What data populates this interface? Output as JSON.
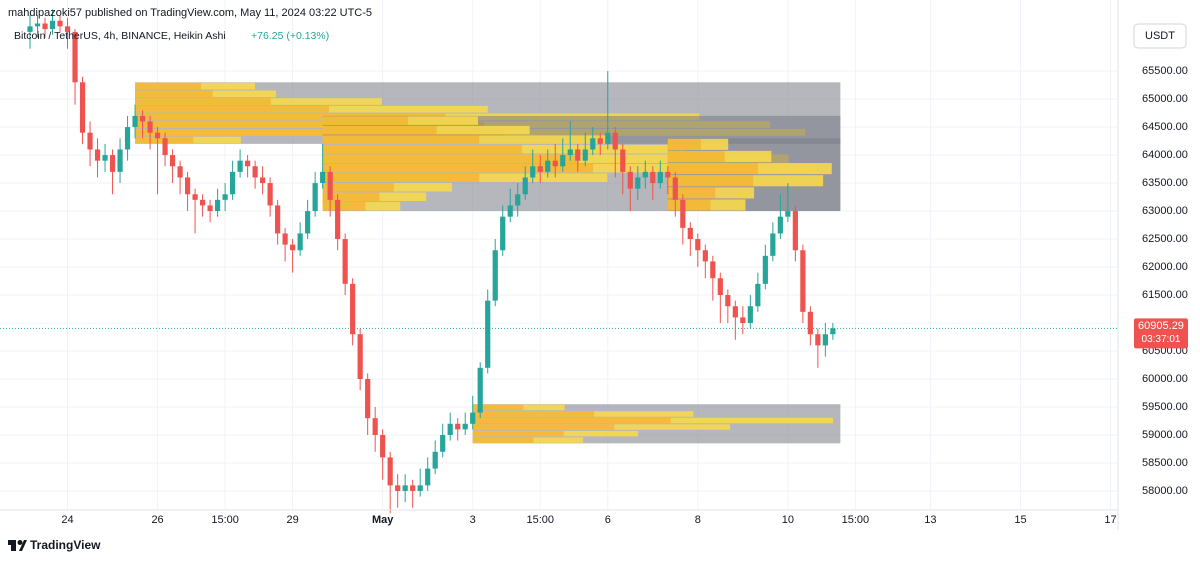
{
  "chart_data": {
    "type": "candlestick",
    "publisher": "mahdipazoki57 published on TradingView.com, May 11, 2024 03:22 UTC-5",
    "symbol": "Bitcoin / TetherUS, 4h, BINANCE, Heikin Ashi",
    "change": "+76.25 (+0.13%)",
    "currency": "USDT",
    "countdown": "03:37:01",
    "brand": "TradingView",
    "up_color": "#26a69a",
    "down_color": "#ef5350",
    "grid": true,
    "xlim": [
      -4,
      145
    ],
    "ylim": [
      57660,
      66770
    ],
    "last_price": {
      "value": 60905.29,
      "label": "60905.29"
    },
    "xticks": [
      {
        "value": 5,
        "label": "24"
      },
      {
        "value": 17,
        "label": "26"
      },
      {
        "value": 26,
        "label": "15:00"
      },
      {
        "value": 35,
        "label": "29"
      },
      {
        "value": 47,
        "label": "May"
      },
      {
        "value": 59,
        "label": "3"
      },
      {
        "value": 68,
        "label": "15:00"
      },
      {
        "value": 77,
        "label": "6"
      },
      {
        "value": 89,
        "label": "8"
      },
      {
        "value": 101,
        "label": "10"
      },
      {
        "value": 110,
        "label": "15:00"
      },
      {
        "value": 120,
        "label": "13"
      },
      {
        "value": 132,
        "label": "15"
      },
      {
        "value": 144,
        "label": "17"
      }
    ],
    "yticks": [
      {
        "value": 58000,
        "label": "58000.00"
      },
      {
        "value": 58500,
        "label": "58500.00"
      },
      {
        "value": 59000,
        "label": "59000.00"
      },
      {
        "value": 59500,
        "label": "59500.00"
      },
      {
        "value": 60000,
        "label": "60000.00"
      },
      {
        "value": 60500,
        "label": "60500.00"
      },
      {
        "value": 61000,
        "label": "61000.00"
      },
      {
        "value": 61500,
        "label": "61500.00"
      },
      {
        "value": 62000,
        "label": "62000.00"
      },
      {
        "value": 62500,
        "label": "62500.00"
      },
      {
        "value": 63000,
        "label": "63000.00"
      },
      {
        "value": 63500,
        "label": "63500.00"
      },
      {
        "value": 64000,
        "label": "64000.00"
      },
      {
        "value": 64500,
        "label": "64500.00"
      },
      {
        "value": 65000,
        "label": "65000.00"
      },
      {
        "value": 65500,
        "label": "65500.00"
      }
    ],
    "profiles": [
      {
        "start": 14,
        "end": 108,
        "low": 64200,
        "high": 65300,
        "rows": [
          0.15,
          0.95,
          0.9,
          0.8,
          0.5,
          0.35,
          0.2,
          0.17
        ]
      },
      {
        "start": 39,
        "end": 108,
        "low": 63000,
        "high": 64700,
        "rows": [
          0.15,
          0.2,
          0.25,
          0.55,
          0.95,
          0.9,
          0.7,
          0.55,
          0.4,
          0.3
        ]
      },
      {
        "start": 59,
        "end": 108,
        "low": 58850,
        "high": 59550,
        "rows": [
          0.3,
          0.45,
          0.7,
          0.98,
          0.6,
          0.25
        ]
      },
      {
        "start": 85,
        "end": 108,
        "low": 63000,
        "high": 64300,
        "rows": [
          0.45,
          0.5,
          0.9,
          0.95,
          0.6,
          0.35
        ]
      }
    ],
    "candles": [
      [
        66200,
        66500,
        65900,
        66300
      ],
      [
        66300,
        66500,
        66100,
        66350
      ],
      [
        66350,
        66450,
        66100,
        66250
      ],
      [
        66250,
        66600,
        66150,
        66400
      ],
      [
        66400,
        66500,
        66200,
        66300
      ],
      [
        66300,
        66450,
        65900,
        66200
      ],
      [
        66200,
        66250,
        64900,
        65300
      ],
      [
        65300,
        65400,
        64200,
        64400
      ],
      [
        64400,
        64600,
        63800,
        64100
      ],
      [
        64100,
        64300,
        63600,
        63900
      ],
      [
        63900,
        64200,
        63700,
        64000
      ],
      [
        64000,
        64100,
        63300,
        63700
      ],
      [
        63700,
        64300,
        63500,
        64100
      ],
      [
        64100,
        64700,
        63900,
        64500
      ],
      [
        64500,
        64900,
        64300,
        64700
      ],
      [
        64700,
        64800,
        64300,
        64600
      ],
      [
        64600,
        64700,
        64100,
        64400
      ],
      [
        64400,
        64500,
        63300,
        64300
      ],
      [
        64300,
        64400,
        63800,
        64000
      ],
      [
        64000,
        64100,
        63500,
        63800
      ],
      [
        63800,
        63900,
        63300,
        63600
      ],
      [
        63600,
        63700,
        63000,
        63300
      ],
      [
        63300,
        63400,
        62600,
        63200
      ],
      [
        63200,
        63300,
        62900,
        63100
      ],
      [
        63100,
        63200,
        62800,
        63000
      ],
      [
        63000,
        63400,
        62900,
        63200
      ],
      [
        63200,
        63500,
        63000,
        63300
      ],
      [
        63300,
        63900,
        63200,
        63700
      ],
      [
        63700,
        64100,
        63600,
        63900
      ],
      [
        63900,
        64000,
        63600,
        63800
      ],
      [
        63800,
        63900,
        63400,
        63600
      ],
      [
        63600,
        63800,
        63300,
        63500
      ],
      [
        63500,
        63600,
        62900,
        63100
      ],
      [
        63100,
        63200,
        62400,
        62600
      ],
      [
        62600,
        62700,
        62100,
        62400
      ],
      [
        62400,
        62500,
        61900,
        62300
      ],
      [
        62300,
        62800,
        62200,
        62600
      ],
      [
        62600,
        63200,
        62500,
        63000
      ],
      [
        63000,
        63700,
        62900,
        63500
      ],
      [
        63500,
        64200,
        63400,
        63700
      ],
      [
        63700,
        63800,
        62900,
        63200
      ],
      [
        63200,
        63300,
        62300,
        62500
      ],
      [
        62500,
        62600,
        61500,
        61700
      ],
      [
        61700,
        61800,
        60600,
        60800
      ],
      [
        60800,
        60900,
        59800,
        60000
      ],
      [
        60000,
        60100,
        59000,
        59300
      ],
      [
        59300,
        59500,
        58700,
        59000
      ],
      [
        59000,
        59100,
        58200,
        58600
      ],
      [
        58600,
        58700,
        57600,
        58100
      ],
      [
        58100,
        58300,
        57700,
        58000
      ],
      [
        58000,
        58300,
        57800,
        58100
      ],
      [
        58100,
        58200,
        57700,
        58000
      ],
      [
        58000,
        58400,
        57900,
        58100
      ],
      [
        58100,
        58600,
        58000,
        58400
      ],
      [
        58400,
        58900,
        58300,
        58700
      ],
      [
        58700,
        59200,
        58600,
        59000
      ],
      [
        59000,
        59400,
        58900,
        59200
      ],
      [
        59200,
        59300,
        58900,
        59100
      ],
      [
        59100,
        59400,
        59000,
        59200
      ],
      [
        59200,
        59700,
        59100,
        59400
      ],
      [
        59400,
        60300,
        59300,
        60200
      ],
      [
        60200,
        61600,
        60100,
        61400
      ],
      [
        61400,
        62500,
        61300,
        62300
      ],
      [
        62300,
        63100,
        62200,
        62900
      ],
      [
        62900,
        63400,
        62800,
        63100
      ],
      [
        63100,
        63500,
        62900,
        63300
      ],
      [
        63300,
        63800,
        63200,
        63600
      ],
      [
        63600,
        64100,
        63500,
        63800
      ],
      [
        63800,
        64000,
        63500,
        63700
      ],
      [
        63700,
        64100,
        63600,
        63900
      ],
      [
        63900,
        64200,
        63600,
        63800
      ],
      [
        63800,
        64300,
        63700,
        64000
      ],
      [
        64000,
        64600,
        63900,
        64100
      ],
      [
        64100,
        64200,
        63700,
        63900
      ],
      [
        63900,
        64400,
        63800,
        64100
      ],
      [
        64100,
        64500,
        64000,
        64300
      ],
      [
        64300,
        64400,
        64000,
        64200
      ],
      [
        64200,
        65500,
        64100,
        64400
      ],
      [
        64400,
        64500,
        63600,
        64100
      ],
      [
        64100,
        64200,
        63300,
        63700
      ],
      [
        63700,
        63800,
        63000,
        63400
      ],
      [
        63400,
        63800,
        63200,
        63600
      ],
      [
        63600,
        63900,
        63400,
        63700
      ],
      [
        63700,
        63800,
        63200,
        63500
      ],
      [
        63500,
        63900,
        63400,
        63700
      ],
      [
        63700,
        63800,
        63300,
        63600
      ],
      [
        63600,
        63700,
        62900,
        63200
      ],
      [
        63200,
        63300,
        62400,
        62700
      ],
      [
        62700,
        62800,
        62200,
        62500
      ],
      [
        62500,
        62600,
        62000,
        62300
      ],
      [
        62300,
        62400,
        61800,
        62100
      ],
      [
        62100,
        62200,
        61400,
        61800
      ],
      [
        61800,
        61900,
        61000,
        61500
      ],
      [
        61500,
        61600,
        61000,
        61300
      ],
      [
        61300,
        61400,
        60700,
        61100
      ],
      [
        61100,
        61300,
        60800,
        61000
      ],
      [
        61000,
        61500,
        60900,
        61300
      ],
      [
        61300,
        61900,
        61200,
        61700
      ],
      [
        61700,
        62400,
        61600,
        62200
      ],
      [
        62200,
        62800,
        62100,
        62600
      ],
      [
        62600,
        63300,
        62500,
        62900
      ],
      [
        62900,
        63500,
        62800,
        63000
      ],
      [
        63000,
        63100,
        62100,
        62300
      ],
      [
        62300,
        62400,
        61000,
        61200
      ],
      [
        61200,
        61300,
        60600,
        60800
      ],
      [
        60800,
        60900,
        60200,
        60600
      ],
      [
        60600,
        61000,
        60400,
        60800
      ],
      [
        60800,
        61000,
        60700,
        60905.29
      ]
    ]
  }
}
